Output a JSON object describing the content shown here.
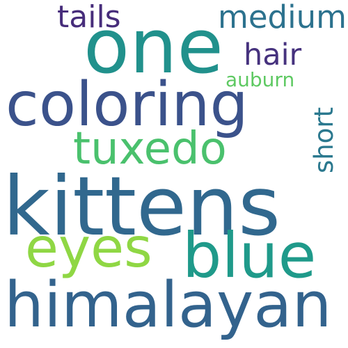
{
  "words": [
    {
      "id": "kittens",
      "text": "kittens",
      "color": "#31688e",
      "orientation": "horizontal"
    },
    {
      "id": "one",
      "text": "one",
      "color": "#21918c",
      "orientation": "horizontal"
    },
    {
      "id": "himalayan",
      "text": "himalayan",
      "color": "#33638d",
      "orientation": "horizontal"
    },
    {
      "id": "coloring",
      "text": "coloring",
      "color": "#3b528b",
      "orientation": "horizontal"
    },
    {
      "id": "blue",
      "text": "blue",
      "color": "#1f9a8a",
      "orientation": "horizontal"
    },
    {
      "id": "eyes",
      "text": "eyes",
      "color": "#8fd744",
      "orientation": "horizontal"
    },
    {
      "id": "tuxedo",
      "text": "tuxedo",
      "color": "#4ac16d",
      "orientation": "horizontal"
    },
    {
      "id": "medium",
      "text": "medium",
      "color": "#2c728e",
      "orientation": "horizontal"
    },
    {
      "id": "tails",
      "text": "tails",
      "color": "#472d7b",
      "orientation": "horizontal"
    },
    {
      "id": "hair",
      "text": "hair",
      "color": "#46327e",
      "orientation": "horizontal"
    },
    {
      "id": "short",
      "text": "short",
      "color": "#2a788e",
      "orientation": "vertical"
    },
    {
      "id": "auburn",
      "text": "auburn",
      "color": "#5ec962",
      "orientation": "horizontal"
    }
  ]
}
